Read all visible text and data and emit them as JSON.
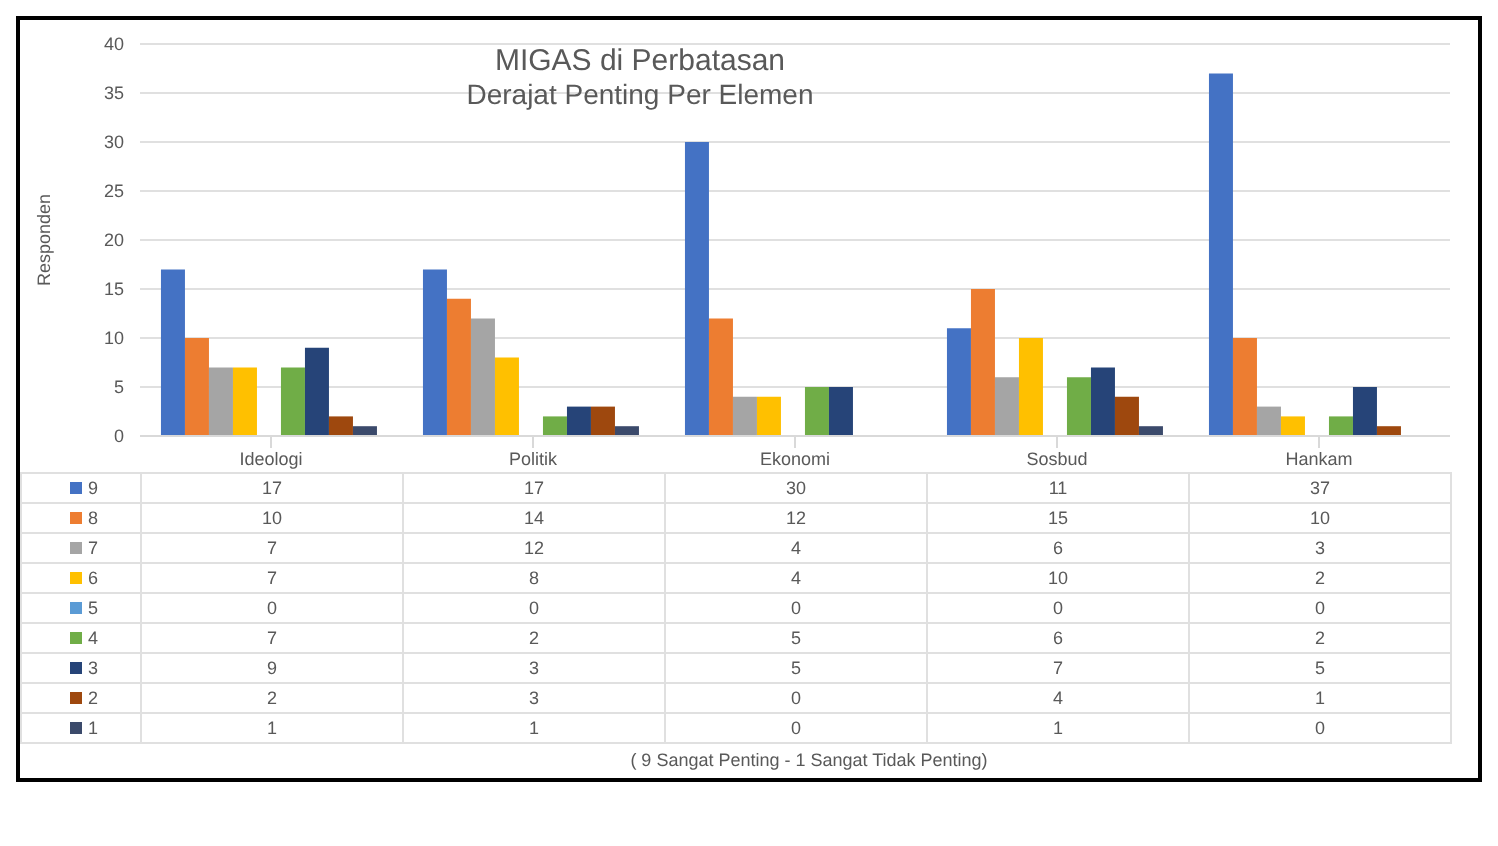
{
  "chart_data": {
    "type": "bar",
    "title": "MIGAS di Perbatasan",
    "subtitle": "Derajat Penting Per Elemen",
    "ylabel": "Responden",
    "categories": [
      "Ideologi",
      "Politik",
      "Ekonomi",
      "Sosbud",
      "Hankam"
    ],
    "series": [
      {
        "name": "9",
        "color": "#4472c4",
        "values": [
          17,
          17,
          30,
          11,
          37
        ]
      },
      {
        "name": "8",
        "color": "#ed7d31",
        "values": [
          10,
          14,
          12,
          15,
          10
        ]
      },
      {
        "name": "7",
        "color": "#a5a5a5",
        "values": [
          7,
          12,
          4,
          6,
          3
        ]
      },
      {
        "name": "6",
        "color": "#ffc000",
        "values": [
          7,
          8,
          4,
          10,
          2
        ]
      },
      {
        "name": "5",
        "color": "#5b9bd5",
        "values": [
          0,
          0,
          0,
          0,
          0
        ]
      },
      {
        "name": "4",
        "color": "#70ad47",
        "values": [
          7,
          2,
          5,
          6,
          2
        ]
      },
      {
        "name": "3",
        "color": "#264478",
        "values": [
          9,
          3,
          5,
          7,
          5
        ]
      },
      {
        "name": "2",
        "color": "#9e480e",
        "values": [
          2,
          3,
          0,
          4,
          1
        ]
      },
      {
        "name": "1",
        "color": "#3b4a6b",
        "values": [
          1,
          1,
          0,
          1,
          0
        ]
      }
    ],
    "ylim": [
      0,
      40
    ],
    "yticks": [
      0,
      5,
      10,
      15,
      20,
      25,
      30,
      35,
      40
    ],
    "grid": "y",
    "legend": "bottom",
    "data_labels": true,
    "annotations": [
      "( 9 Sangat Penting - 1 Sangat Tidak Penting)"
    ]
  }
}
